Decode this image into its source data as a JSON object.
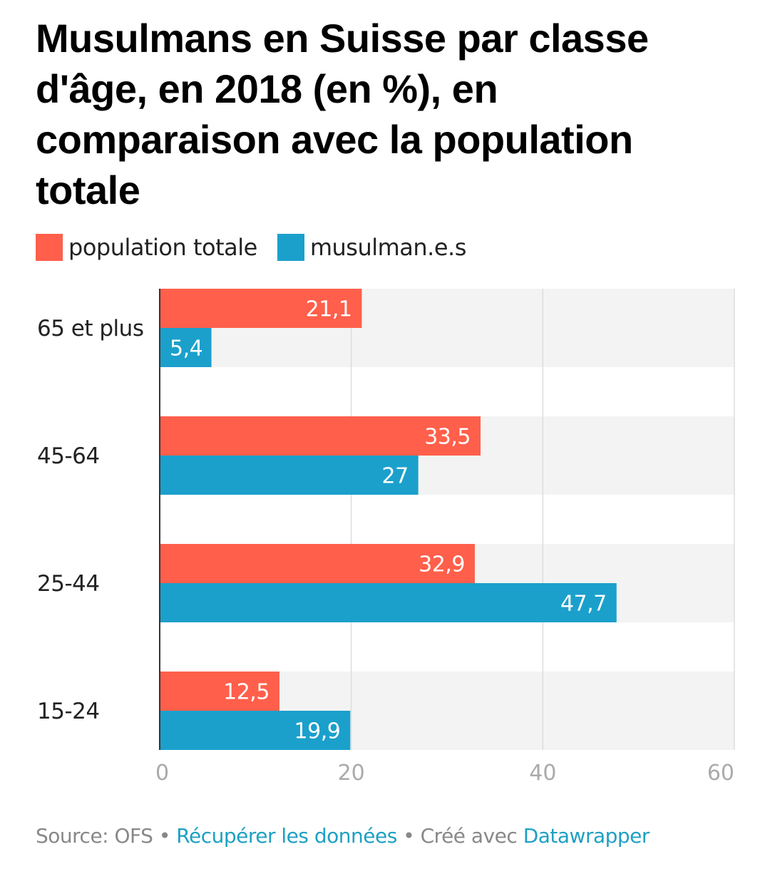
{
  "title": "Musulmans en Suisse par classe d'âge, en 2018 (en %), en comparaison avec la population totale",
  "legend": [
    {
      "label": "population totale",
      "color": "#ff5f4b"
    },
    {
      "label": "musulman.e.s",
      "color": "#1ba0cc"
    }
  ],
  "footer": {
    "source": "Source: OFS",
    "sep1": " • ",
    "data_link": "Récupérer les données",
    "sep2": " • ",
    "created": "Créé avec ",
    "tool_link": "Datawrapper"
  },
  "colors": {
    "band": "#f3f3f3",
    "grid": "#dddddd",
    "axis": "#333333",
    "tick_label": "#aaaaaa",
    "bar_label": "#ffffff"
  },
  "chart_data": {
    "type": "bar",
    "orientation": "horizontal-grouped",
    "title": "Musulmans en Suisse par classe d'âge, en 2018 (en %), en comparaison avec la population totale",
    "xlabel": "",
    "ylabel": "",
    "categories": [
      "65 et plus",
      "45-64",
      "25-44",
      "15-24"
    ],
    "series": [
      {
        "name": "population totale",
        "color": "#ff5f4b",
        "values": [
          21.1,
          33.5,
          32.9,
          12.5
        ],
        "labels": [
          "21,1",
          "33,5",
          "32,9",
          "12,5"
        ]
      },
      {
        "name": "musulman.e.s",
        "color": "#1ba0cc",
        "values": [
          5.4,
          27,
          47.7,
          19.9
        ],
        "labels": [
          "5,4",
          "27",
          "47,7",
          "19,9"
        ]
      }
    ],
    "xlim": [
      0,
      60
    ],
    "xticks": [
      0,
      20,
      40,
      60
    ],
    "xtick_labels": [
      "0",
      "20",
      "40",
      "60"
    ],
    "grid": true,
    "legend_position": "top-left"
  }
}
